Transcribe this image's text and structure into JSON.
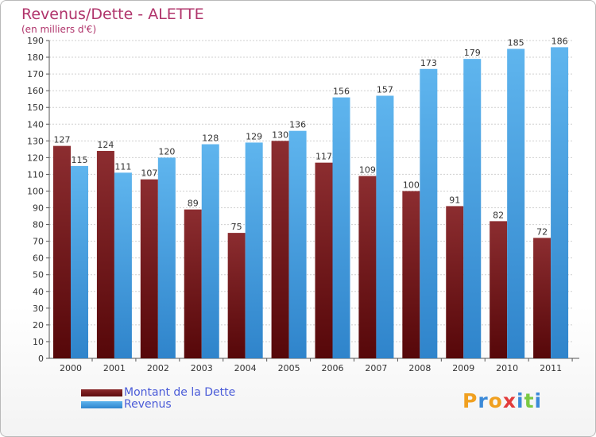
{
  "chart_data": {
    "type": "bar",
    "title": "Revenus/Dette - ALETTE",
    "subtitle": "(en milliers d'€)",
    "categories": [
      "2000",
      "2001",
      "2002",
      "2003",
      "2004",
      "2005",
      "2006",
      "2007",
      "2008",
      "2009",
      "2010",
      "2011"
    ],
    "series": [
      {
        "name": "Montant de la Dette",
        "color": "#7a1f22",
        "values": [
          127,
          124,
          107,
          89,
          75,
          130,
          117,
          109,
          100,
          91,
          82,
          72
        ]
      },
      {
        "name": "Revenus",
        "color": "#4aa3e6",
        "values": [
          115,
          111,
          120,
          128,
          129,
          136,
          156,
          157,
          173,
          179,
          185,
          186
        ]
      }
    ],
    "ylim": [
      0,
      190
    ],
    "yticks": [
      0,
      10,
      20,
      30,
      40,
      50,
      60,
      70,
      80,
      90,
      100,
      110,
      120,
      130,
      140,
      150,
      160,
      170,
      180,
      190
    ],
    "grid": true,
    "legend": "bottom-left"
  },
  "logo": {
    "text": "Proxiti",
    "colors": [
      "#f0a020",
      "#3b8ad8",
      "#f0a020",
      "#e23b3b",
      "#3b8ad8",
      "#7ac943",
      "#3b8ad8"
    ]
  }
}
